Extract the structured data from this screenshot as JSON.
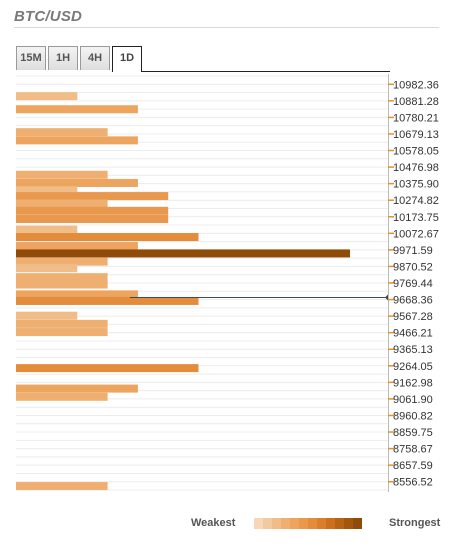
{
  "header": {
    "title": "BTC/USD"
  },
  "tabs": [
    {
      "label": "15M",
      "active": false
    },
    {
      "label": "1H",
      "active": false
    },
    {
      "label": "4H",
      "active": false
    },
    {
      "label": "1D",
      "active": true
    }
  ],
  "legend": {
    "weak_label": "Weakest",
    "strong_label": "Strongest",
    "colors": [
      "#f6d8b8",
      "#f3caa0",
      "#f0bd88",
      "#eeaf70",
      "#eca45e",
      "#e9994d",
      "#e38c3b",
      "#d97e2c",
      "#cc7020",
      "#b86214",
      "#a4560c",
      "#8f4b08"
    ]
  },
  "chart_data": {
    "type": "bar",
    "title": "",
    "xlabel": "",
    "ylabel": "",
    "orientation": "horizontal",
    "current_price_level": 9668.36,
    "ylim": [
      8505.98,
      11032.9
    ],
    "levels": [
      10982.36,
      10881.28,
      10780.21,
      10679.13,
      10578.05,
      10476.98,
      10375.9,
      10274.82,
      10173.75,
      10072.67,
      9971.59,
      9870.52,
      9769.44,
      9668.36,
      9567.28,
      9466.21,
      9365.13,
      9264.05,
      9162.98,
      9061.9,
      8960.82,
      8859.75,
      8758.67,
      8657.59,
      8556.52
    ],
    "tick_labels": [
      "10982.36",
      "10881.28",
      "10780.21",
      "10679.13",
      "10578.05",
      "10476.98",
      "10375.90",
      "10274.82",
      "10173.75",
      "10072.67",
      "9971.59",
      "9870.52",
      "9769.44",
      "9668.36",
      "9567.28",
      "9466.21",
      "9365.13",
      "9264.05",
      "9162.98",
      "9061.90",
      "8960.82",
      "8859.75",
      "8758.67",
      "8657.59",
      "8556.52"
    ],
    "bars": [
      {
        "value": 10910,
        "strength": 2
      },
      {
        "value": 10830,
        "strength": 4
      },
      {
        "value": 10690,
        "strength": 3
      },
      {
        "value": 10640,
        "strength": 4
      },
      {
        "value": 10430,
        "strength": 3
      },
      {
        "value": 10380,
        "strength": 4
      },
      {
        "value": 10335,
        "strength": 2
      },
      {
        "value": 10300,
        "strength": 5
      },
      {
        "value": 10255,
        "strength": 3
      },
      {
        "value": 10210,
        "strength": 5
      },
      {
        "value": 10160,
        "strength": 5
      },
      {
        "value": 10095,
        "strength": 2
      },
      {
        "value": 10050,
        "strength": 6
      },
      {
        "value": 9995,
        "strength": 4
      },
      {
        "value": 9950,
        "strength": 11
      },
      {
        "value": 9900,
        "strength": 3
      },
      {
        "value": 9860,
        "strength": 2
      },
      {
        "value": 9805,
        "strength": 3
      },
      {
        "value": 9760,
        "strength": 3
      },
      {
        "value": 9700,
        "strength": 4
      },
      {
        "value": 9660,
        "strength": 6
      },
      {
        "value": 9570,
        "strength": 2
      },
      {
        "value": 9520,
        "strength": 3
      },
      {
        "value": 9470,
        "strength": 3
      },
      {
        "value": 9250,
        "strength": 6
      },
      {
        "value": 9125,
        "strength": 4
      },
      {
        "value": 9075,
        "strength": 3
      },
      {
        "value": 8530,
        "strength": 3
      }
    ]
  }
}
